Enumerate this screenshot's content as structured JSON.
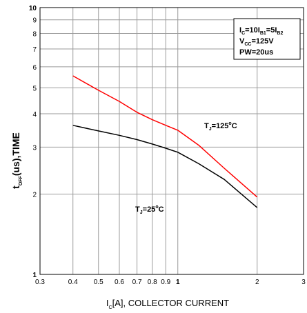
{
  "chart_data": {
    "type": "line",
    "x_scale": "log",
    "y_scale": "log",
    "xlim": [
      0.3,
      3
    ],
    "ylim": [
      1,
      10
    ],
    "grid": true,
    "x_ticks": [
      "0.3",
      "0.4",
      "0.5",
      "0.6",
      "0.7",
      "0.8",
      "0.9",
      "1",
      "2",
      "3"
    ],
    "y_ticks": [
      "1",
      "2",
      "3",
      "4",
      "5",
      "6",
      "7",
      "8",
      "9",
      "10"
    ],
    "xlabel": {
      "main": "I",
      "sub": "C",
      "rest": "[A], COLLECTOR CURRENT"
    },
    "ylabel": {
      "main": "t",
      "sub": "OFF",
      "rest": "(us),TIME"
    },
    "conditions": [
      {
        "main": "I",
        "sub": "C",
        "rest": "=10I",
        "sub2": "B1",
        "rest2": "=5I",
        "sub3": "B2"
      },
      {
        "main": "V",
        "sub": "CC",
        "rest": "=125V"
      },
      {
        "main": "PW=20us"
      }
    ],
    "series": [
      {
        "color": "#ff0000",
        "label": {
          "main": "T",
          "sub": "J",
          "rest": "=125",
          "sup": "o",
          "end": "C"
        },
        "x": [
          0.4,
          0.5,
          0.6,
          0.7,
          0.8,
          0.9,
          1.0,
          1.2,
          1.5,
          2.0
        ],
        "y": [
          5.55,
          4.9,
          4.45,
          4.05,
          3.8,
          3.62,
          3.47,
          3.05,
          2.5,
          1.95
        ]
      },
      {
        "color": "#000000",
        "label": {
          "main": "T",
          "sub": "J",
          "rest": "=25",
          "sup": "o",
          "end": "C"
        },
        "x": [
          0.4,
          0.5,
          0.6,
          0.7,
          0.8,
          0.9,
          1.0,
          1.2,
          1.5,
          2.0
        ],
        "y": [
          3.62,
          3.45,
          3.32,
          3.2,
          3.08,
          2.97,
          2.87,
          2.6,
          2.27,
          1.78
        ]
      }
    ]
  }
}
